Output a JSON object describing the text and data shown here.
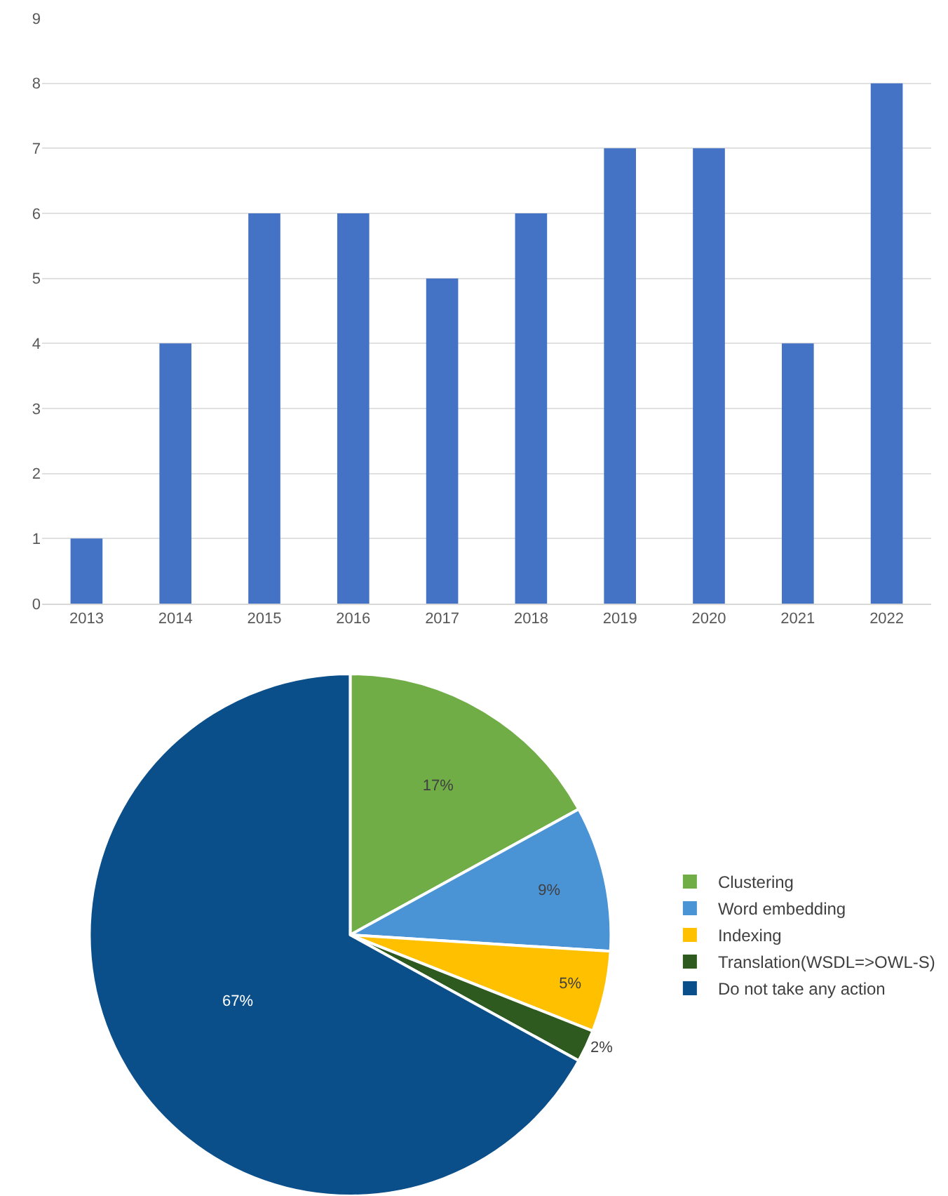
{
  "chart_data": [
    {
      "type": "bar",
      "categories": [
        "2013",
        "2014",
        "2015",
        "2016",
        "2017",
        "2018",
        "2019",
        "2020",
        "2021",
        "2022"
      ],
      "values": [
        1,
        4,
        6,
        6,
        5,
        6,
        7,
        7,
        4,
        8
      ],
      "color": "#4472c4",
      "ylim": [
        0,
        9
      ],
      "yticks": [
        0,
        1,
        2,
        3,
        4,
        5,
        6,
        7,
        8,
        9
      ],
      "grid": "y"
    },
    {
      "type": "pie",
      "categories": [
        "Clustering",
        "Word embedding",
        "Indexing",
        "Translation(WSDL=>OWL-S)",
        "Do not take any action"
      ],
      "values": [
        17,
        9,
        5,
        2,
        67
      ],
      "colors": [
        "#70ad47",
        "#4a94d6",
        "#ffc000",
        "#2f5a1f",
        "#0b4f8a"
      ],
      "value_labels": [
        "17%",
        "9%",
        "5%",
        "2%",
        "67%"
      ],
      "legend": "right"
    }
  ]
}
